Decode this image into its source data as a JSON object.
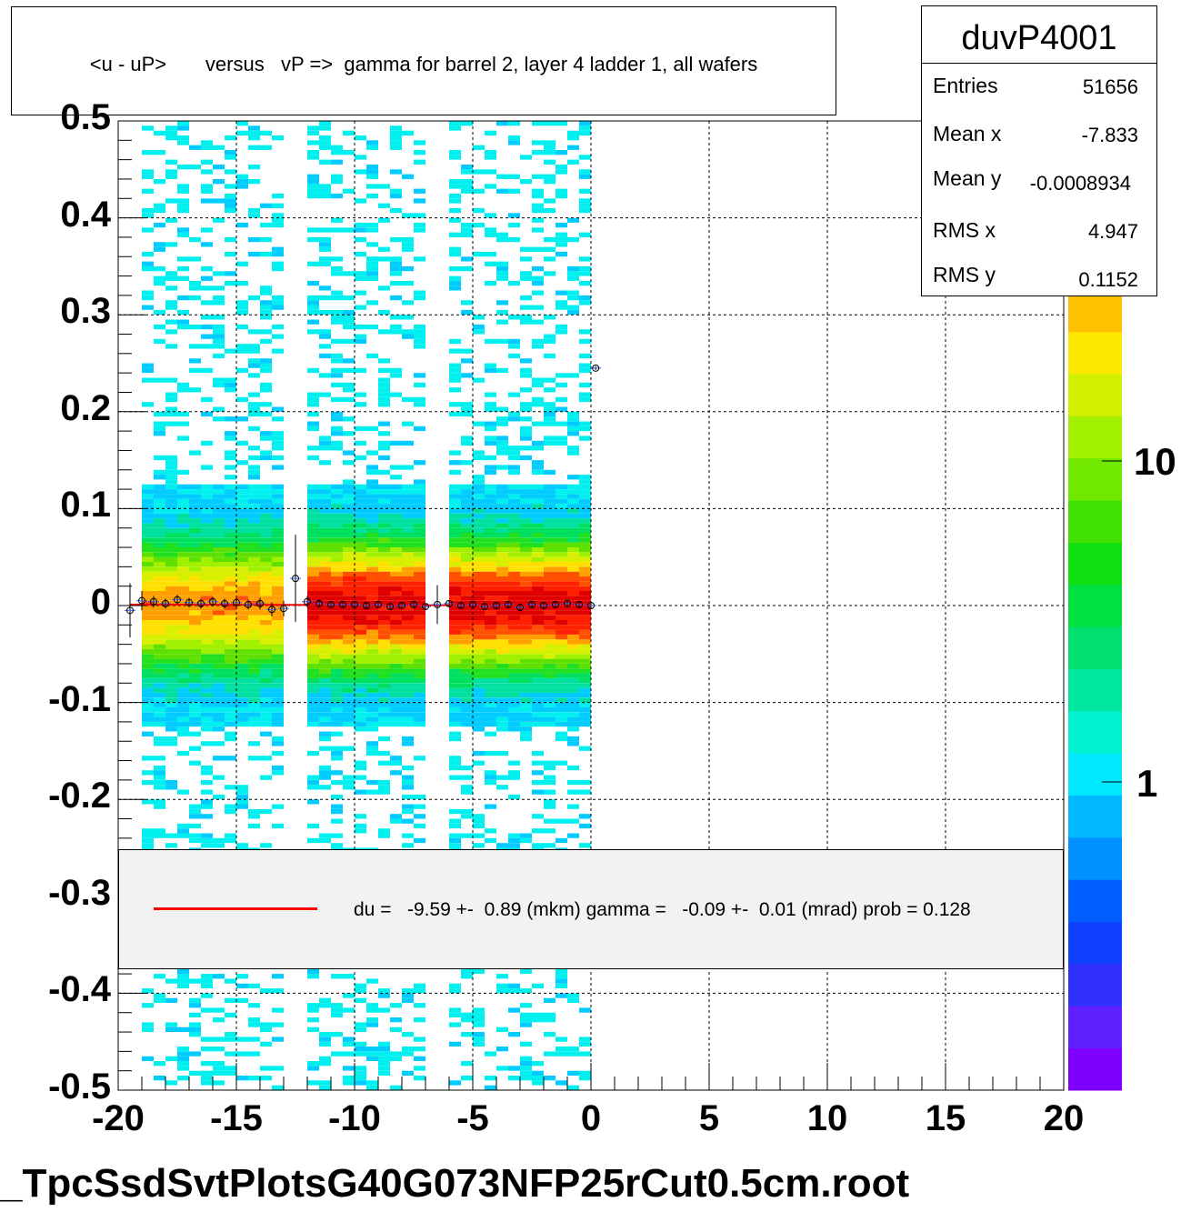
{
  "title": "<u - uP>       versus   vP =>  gamma for barrel 2, layer 4 ladder 1, all wafers",
  "footer_filename": "_TpcSsdSvtPlotsG40G073NFP25rCut0.5cm.root",
  "stats": {
    "name": "duvP4001",
    "rows": [
      {
        "label": "Entries",
        "value": "51656"
      },
      {
        "label": "Mean x",
        "value": "-7.833"
      },
      {
        "label": "Mean y",
        "value": "-0.0008934"
      },
      {
        "label": "RMS x",
        "value": "4.947"
      },
      {
        "label": "RMS y",
        "value": "0.1152"
      }
    ]
  },
  "legend": {
    "line_color": "#ff0000",
    "text": "du =   -9.59 +-  0.89 (mkm) gamma =   -0.09 +-  0.01 (mrad) prob = 0.128"
  },
  "chart_data": {
    "type": "heatmap",
    "title": "<u - uP>       versus   vP =>  gamma for barrel 2, layer 4 ladder 1, all wafers",
    "xlabel": "",
    "ylabel": "",
    "xlim": [
      -20,
      20
    ],
    "ylim": [
      -0.5,
      0.5
    ],
    "x_ticks": [
      "-20",
      "-15",
      "-10",
      "-5",
      "0",
      "5",
      "10",
      "15",
      "20"
    ],
    "y_ticks": [
      "-0.5",
      "-0.4",
      "-0.3",
      "-0.2",
      "-0.1",
      "0",
      "0.1",
      "0.2",
      "0.3",
      "0.4",
      "0.5"
    ],
    "z_scale": "log",
    "z_ticks": [
      "1",
      "10"
    ],
    "grid": true,
    "filled_x_range": [
      -19,
      0
    ],
    "gaps_x": [
      -12.5,
      -6.5
    ],
    "band_center_y": 0,
    "profile_points": {
      "x": [
        -19.5,
        -19,
        -18.5,
        -18,
        -17.5,
        -17,
        -16.5,
        -16,
        -15.5,
        -15,
        -14.5,
        -14,
        -13.5,
        -13,
        -12.5,
        -12,
        -11.5,
        -11,
        -10.5,
        -10,
        -9.5,
        -9,
        -8.5,
        -8,
        -7.5,
        -7,
        -6.5,
        -6,
        -5.5,
        -5,
        -4.5,
        -4,
        -3.5,
        -3,
        -2.5,
        -2,
        -1.5,
        -1,
        -0.5,
        0,
        0.2
      ],
      "y": [
        -0.005,
        0.005,
        0.004,
        0.002,
        0.006,
        0.003,
        0.002,
        0.004,
        0.002,
        0.003,
        0.001,
        0.002,
        -0.004,
        -0.003,
        0.028,
        0.004,
        0.002,
        0.001,
        0.001,
        0.001,
        0.0,
        0.001,
        -0.001,
        0.0,
        0.001,
        -0.001,
        0.001,
        0.002,
        0.0,
        0.001,
        -0.001,
        0.0,
        0.001,
        -0.002,
        0.001,
        0.0,
        0.001,
        0.002,
        0.001,
        0.0,
        0.245
      ],
      "y_err": [
        0.028,
        0.01,
        0.006,
        0.005,
        0.005,
        0.005,
        0.005,
        0.005,
        0.005,
        0.005,
        0.005,
        0.006,
        0.007,
        0.008,
        0.045,
        0.006,
        0.004,
        0.003,
        0.003,
        0.003,
        0.003,
        0.003,
        0.003,
        0.003,
        0.003,
        0.003,
        0.02,
        0.003,
        0.003,
        0.003,
        0.003,
        0.003,
        0.003,
        0.003,
        0.003,
        0.003,
        0.003,
        0.003,
        0.003,
        0.004,
        0.002
      ]
    },
    "fit_line": {
      "x": [
        -19.5,
        0
      ],
      "y": [
        0.001,
        0.0
      ],
      "color": "#ff0000"
    }
  }
}
